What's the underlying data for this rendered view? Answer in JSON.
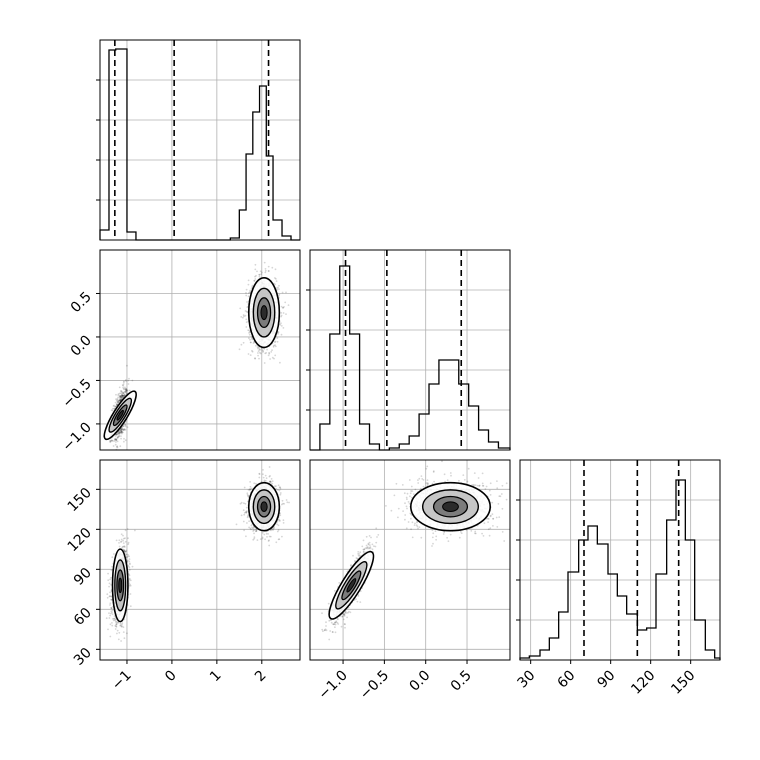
{
  "figure": {
    "type": "corner-plot",
    "background": "#ffffff",
    "grid": true
  },
  "chart_data": [
    {
      "panel": "hist-1",
      "type": "histogram",
      "param_index": 0,
      "xlim": [
        -1.6,
        2.85
      ],
      "ylim": [
        0,
        1.0
      ],
      "bins": [
        {
          "x0": -1.6,
          "x1": -1.4,
          "h": 0.05
        },
        {
          "x0": -1.4,
          "x1": -1.25,
          "h": 0.95
        },
        {
          "x0": -1.25,
          "x1": -1.0,
          "h": 0.955
        },
        {
          "x0": -1.0,
          "x1": -0.8,
          "h": 0.04
        },
        {
          "x0": -0.8,
          "x1": 1.3,
          "h": 0.0
        },
        {
          "x0": 1.3,
          "x1": 1.5,
          "h": 0.01
        },
        {
          "x0": 1.5,
          "x1": 1.65,
          "h": 0.15
        },
        {
          "x0": 1.65,
          "x1": 1.8,
          "h": 0.43
        },
        {
          "x0": 1.8,
          "x1": 1.95,
          "h": 0.64
        },
        {
          "x0": 1.95,
          "x1": 2.1,
          "h": 0.77
        },
        {
          "x0": 2.1,
          "x1": 2.25,
          "h": 0.42
        },
        {
          "x0": 2.25,
          "x1": 2.45,
          "h": 0.1
        },
        {
          "x0": 2.45,
          "x1": 2.65,
          "h": 0.02
        },
        {
          "x0": 2.65,
          "x1": 2.85,
          "h": 0.0
        }
      ],
      "quantiles": [
        -1.27,
        0.05,
        2.15
      ]
    },
    {
      "panel": "hist-2",
      "type": "histogram",
      "param_index": 1,
      "xlim": [
        -1.4,
        1.02
      ],
      "ylim": [
        0,
        1.0
      ],
      "bins": [
        {
          "x0": -1.4,
          "x1": -1.28,
          "h": 0.0
        },
        {
          "x0": -1.28,
          "x1": -1.16,
          "h": 0.13
        },
        {
          "x0": -1.16,
          "x1": -1.04,
          "h": 0.58
        },
        {
          "x0": -1.04,
          "x1": -0.92,
          "h": 0.92
        },
        {
          "x0": -0.92,
          "x1": -0.8,
          "h": 0.58
        },
        {
          "x0": -0.8,
          "x1": -0.68,
          "h": 0.13
        },
        {
          "x0": -0.68,
          "x1": -0.56,
          "h": 0.03
        },
        {
          "x0": -0.56,
          "x1": -0.44,
          "h": 0.0
        },
        {
          "x0": -0.44,
          "x1": -0.32,
          "h": 0.01
        },
        {
          "x0": -0.32,
          "x1": -0.2,
          "h": 0.03
        },
        {
          "x0": -0.2,
          "x1": -0.08,
          "h": 0.07
        },
        {
          "x0": -0.08,
          "x1": 0.04,
          "h": 0.18
        },
        {
          "x0": 0.04,
          "x1": 0.16,
          "h": 0.33
        },
        {
          "x0": 0.16,
          "x1": 0.28,
          "h": 0.45
        },
        {
          "x0": 0.28,
          "x1": 0.4,
          "h": 0.45
        },
        {
          "x0": 0.4,
          "x1": 0.52,
          "h": 0.33
        },
        {
          "x0": 0.52,
          "x1": 0.64,
          "h": 0.22
        },
        {
          "x0": 0.64,
          "x1": 0.76,
          "h": 0.1
        },
        {
          "x0": 0.76,
          "x1": 0.88,
          "h": 0.04
        },
        {
          "x0": 0.88,
          "x1": 1.02,
          "h": 0.01
        }
      ],
      "quantiles": [
        -0.97,
        -0.47,
        0.43
      ]
    },
    {
      "panel": "hist-3",
      "type": "histogram",
      "param_index": 2,
      "xlim": [
        22,
        172
      ],
      "ylim": [
        0,
        1.0
      ],
      "bins": [
        {
          "x0": 22,
          "x1": 29,
          "h": 0.01
        },
        {
          "x0": 29,
          "x1": 37,
          "h": 0.02
        },
        {
          "x0": 37,
          "x1": 44,
          "h": 0.05
        },
        {
          "x0": 44,
          "x1": 51,
          "h": 0.11
        },
        {
          "x0": 51,
          "x1": 58,
          "h": 0.24
        },
        {
          "x0": 58,
          "x1": 66,
          "h": 0.44
        },
        {
          "x0": 66,
          "x1": 73,
          "h": 0.6
        },
        {
          "x0": 73,
          "x1": 80,
          "h": 0.67
        },
        {
          "x0": 80,
          "x1": 88,
          "h": 0.58
        },
        {
          "x0": 88,
          "x1": 95,
          "h": 0.43
        },
        {
          "x0": 95,
          "x1": 102,
          "h": 0.32
        },
        {
          "x0": 102,
          "x1": 110,
          "h": 0.23
        },
        {
          "x0": 110,
          "x1": 117,
          "h": 0.15
        },
        {
          "x0": 117,
          "x1": 124,
          "h": 0.16
        },
        {
          "x0": 124,
          "x1": 132,
          "h": 0.43
        },
        {
          "x0": 132,
          "x1": 139,
          "h": 0.7
        },
        {
          "x0": 139,
          "x1": 146,
          "h": 0.9
        },
        {
          "x0": 146,
          "x1": 153,
          "h": 0.6
        },
        {
          "x0": 153,
          "x1": 161,
          "h": 0.2
        },
        {
          "x0": 161,
          "x1": 168,
          "h": 0.05
        },
        {
          "x0": 168,
          "x1": 172,
          "h": 0.01
        }
      ],
      "quantiles": [
        70,
        110,
        141
      ]
    },
    {
      "panel": "scatter-2-1",
      "type": "scatter-contour",
      "x_param": 0,
      "y_param": 1,
      "xlim": [
        -1.6,
        2.85
      ],
      "ylim": [
        -1.3,
        1.0
      ],
      "clusters": [
        {
          "center": [
            -1.15,
            -0.9
          ],
          "sx": 0.09,
          "sy": 0.15,
          "rho": 0.5,
          "n": 900
        },
        {
          "center": [
            2.05,
            0.28
          ],
          "sx": 0.17,
          "sy": 0.2,
          "rho": 0.0,
          "n": 1300
        }
      ]
    },
    {
      "panel": "scatter-3-1",
      "type": "scatter-contour",
      "x_param": 0,
      "y_param": 2,
      "xlim": [
        -1.6,
        2.85
      ],
      "ylim": [
        22,
        172
      ],
      "clusters": [
        {
          "center": [
            -1.15,
            78
          ],
          "sx": 0.09,
          "sy": 13,
          "rho": 0.3,
          "n": 1200
        },
        {
          "center": [
            2.05,
            137
          ],
          "sx": 0.17,
          "sy": 9,
          "rho": 0.0,
          "n": 1200
        }
      ]
    },
    {
      "panel": "scatter-3-2",
      "type": "scatter-contour",
      "x_param": 1,
      "y_param": 2,
      "xlim": [
        -1.4,
        1.02
      ],
      "ylim": [
        22,
        172
      ],
      "clusters": [
        {
          "center": [
            -0.9,
            78
          ],
          "sx": 0.11,
          "sy": 13,
          "rho": 0.85,
          "n": 1200
        },
        {
          "center": [
            0.3,
            137
          ],
          "sx": 0.24,
          "sy": 9,
          "rho": 0.0,
          "n": 1300
        }
      ]
    }
  ],
  "axes": {
    "x1": {
      "ticks": [
        {
          "value": -1,
          "label": "−1"
        },
        {
          "value": 0,
          "label": "0"
        },
        {
          "value": 1,
          "label": "1"
        },
        {
          "value": 2,
          "label": "2"
        }
      ]
    },
    "x2": {
      "ticks": [
        {
          "value": -1.0,
          "label": "−1.0"
        },
        {
          "value": -0.5,
          "label": "−0.5"
        },
        {
          "value": 0.0,
          "label": "0.0"
        },
        {
          "value": 0.5,
          "label": "0.5"
        }
      ]
    },
    "x3": {
      "ticks": [
        {
          "value": 30,
          "label": "30"
        },
        {
          "value": 60,
          "label": "60"
        },
        {
          "value": 90,
          "label": "90"
        },
        {
          "value": 120,
          "label": "120"
        },
        {
          "value": 150,
          "label": "150"
        }
      ]
    },
    "y2": {
      "ticks": [
        {
          "value": 0.5,
          "label": "0.5"
        },
        {
          "value": 0.0,
          "label": "0.0"
        },
        {
          "value": -0.5,
          "label": "−0.5"
        },
        {
          "value": -1.0,
          "label": "−1.0"
        }
      ]
    },
    "y3": {
      "ticks": [
        {
          "value": 150,
          "label": "150"
        },
        {
          "value": 120,
          "label": "120"
        },
        {
          "value": 90,
          "label": "90"
        },
        {
          "value": 60,
          "label": "60"
        },
        {
          "value": 30,
          "label": "30"
        }
      ]
    }
  },
  "colors": {
    "line": "#000000",
    "grid": "#b0b0b0",
    "point": "#000000"
  }
}
